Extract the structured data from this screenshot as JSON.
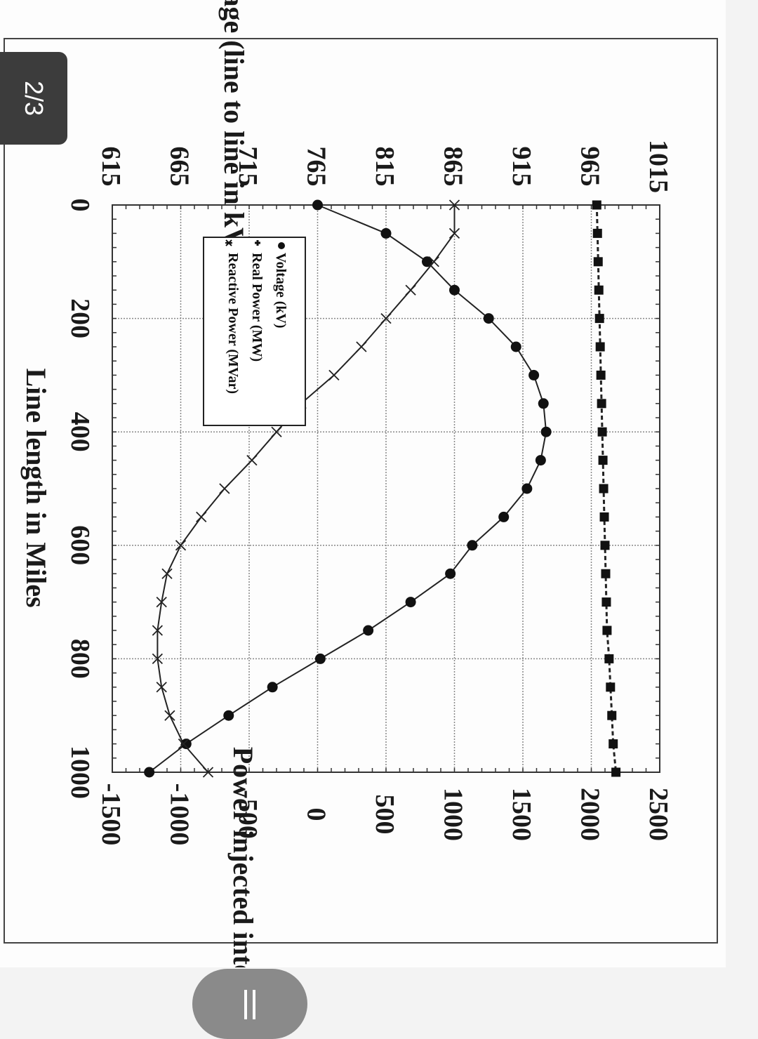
{
  "page_indicator": "2/3",
  "pause_icon": "pause-icon",
  "chart_data": {
    "type": "line",
    "left_axis_label": "Voltage (line to line in kV)",
    "right_axis_label": "Power injected into line",
    "xlabel": "Line length in Miles",
    "xlim": [
      0,
      1000
    ],
    "x_ticks": [
      "0",
      "200",
      "400",
      "600",
      "800",
      "1000"
    ],
    "voltage_axis": {
      "range": [
        615,
        1015
      ],
      "ticks": [
        "615",
        "665",
        "715",
        "765",
        "815",
        "865",
        "915",
        "965",
        "1015"
      ]
    },
    "power_axis": {
      "range": [
        -1500,
        2500
      ],
      "ticks": [
        "-1500",
        "-1000",
        "-500",
        "0",
        "500",
        "1000",
        "1500",
        "2000",
        "2500"
      ]
    },
    "grid": true,
    "legend": {
      "placement": "top-left",
      "entries": [
        "Voltage (kV)",
        "Real Power (MW)",
        "Reactive Power (MVar)"
      ]
    },
    "series": [
      {
        "name": "Voltage (kV)",
        "axis": "voltage",
        "marker": "circle",
        "x": [
          0,
          50,
          100,
          150,
          200,
          250,
          300,
          350,
          400,
          450,
          500,
          550,
          600,
          650,
          700,
          750,
          800,
          850,
          900,
          950,
          1000
        ],
        "values": [
          765,
          815,
          845,
          865,
          890,
          910,
          923,
          930,
          932,
          928,
          918,
          901,
          878,
          862,
          833,
          802,
          767,
          732,
          700,
          669,
          642
        ]
      },
      {
        "name": "Real Power (MW)",
        "axis": "power",
        "marker": "square",
        "x": [
          0,
          50,
          100,
          150,
          200,
          250,
          300,
          350,
          400,
          450,
          500,
          550,
          600,
          650,
          700,
          750,
          800,
          850,
          900,
          950,
          1000
        ],
        "values": [
          2040,
          2045,
          2050,
          2055,
          2060,
          2065,
          2070,
          2075,
          2080,
          2085,
          2090,
          2095,
          2100,
          2105,
          2110,
          2115,
          2130,
          2140,
          2150,
          2160,
          2180
        ]
      },
      {
        "name": "Reactive Power (MVar)",
        "axis": "power",
        "marker": "cross",
        "x": [
          0,
          50,
          100,
          150,
          200,
          250,
          300,
          350,
          400,
          450,
          500,
          550,
          600,
          650,
          700,
          750,
          800,
          850,
          900,
          950,
          1000
        ],
        "values": [
          1000,
          1000,
          850,
          680,
          500,
          320,
          120,
          -120,
          -300,
          -480,
          -680,
          -850,
          -1000,
          -1100,
          -1140,
          -1170,
          -1170,
          -1140,
          -1080,
          -980,
          -800
        ]
      }
    ]
  }
}
